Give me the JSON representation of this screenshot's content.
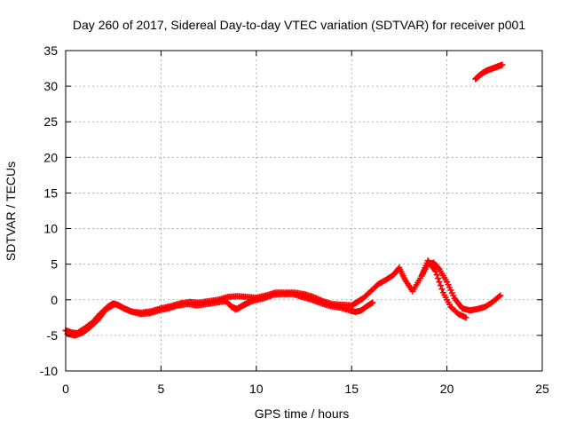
{
  "chart_data": {
    "type": "scatter",
    "title": "Day 260 of 2017, Sidereal Day-to-day VTEC variation (SDTVAR) for receiver p001",
    "xlabel": "GPS time / hours",
    "ylabel": "SDTVAR / TECUs",
    "xlim": [
      0,
      25
    ],
    "ylim": [
      -10,
      35
    ],
    "xticks": [
      0,
      5,
      10,
      15,
      20,
      25
    ],
    "yticks": [
      -10,
      -5,
      0,
      5,
      10,
      15,
      20,
      25,
      30,
      35
    ],
    "xtick_labels": [
      "0",
      "5",
      "10",
      "15",
      "20",
      "25"
    ],
    "ytick_labels": [
      "-10",
      "-5",
      "0",
      "5",
      "10",
      "15",
      "20",
      "25",
      "30",
      "35"
    ],
    "grid": true,
    "marker": "plus",
    "colors": {
      "series": "#ff0000",
      "grid": "#a0a0a0",
      "axes": "#000000"
    },
    "series": [
      {
        "name": "track-a",
        "x": [
          0.0,
          0.3,
          0.6,
          1.0,
          1.4,
          1.8,
          2.2,
          2.5,
          2.8,
          3.1,
          3.5,
          4.0,
          4.5,
          5.0,
          5.5,
          6.0,
          6.5,
          7.0,
          7.5,
          8.0,
          8.5,
          9.0,
          9.5,
          10.0,
          10.5,
          11.0,
          11.5,
          12.0,
          12.5,
          13.0,
          13.5,
          14.0,
          14.5,
          15.0,
          15.3,
          15.6,
          16.0,
          16.4,
          16.8,
          17.2,
          17.5,
          17.8,
          18.2,
          18.6,
          19.0,
          19.3,
          19.6,
          20.0,
          20.4,
          20.8,
          21.2,
          21.6,
          22.0,
          22.4,
          22.8
        ],
        "y": [
          -4.3,
          -4.6,
          -4.7,
          -4.0,
          -3.2,
          -2.0,
          -1.0,
          -0.5,
          -0.8,
          -1.3,
          -1.7,
          -1.8,
          -1.6,
          -1.2,
          -0.9,
          -0.5,
          -0.3,
          -0.4,
          -0.2,
          0.0,
          0.4,
          0.5,
          0.4,
          0.3,
          0.6,
          1.0,
          1.0,
          1.0,
          0.8,
          0.4,
          -0.2,
          -0.6,
          -0.7,
          -0.8,
          -0.3,
          0.2,
          1.2,
          2.2,
          2.8,
          3.5,
          4.5,
          2.8,
          1.2,
          3.0,
          5.0,
          5.2,
          4.3,
          2.5,
          0.2,
          -1.2,
          -1.5,
          -1.3,
          -1.0,
          -0.3,
          0.6
        ]
      },
      {
        "name": "track-b",
        "x": [
          0.1,
          0.5,
          0.9,
          1.3,
          1.7,
          2.1,
          2.6,
          3.0,
          3.4,
          3.9,
          4.4,
          4.9,
          5.4,
          5.9,
          6.4,
          6.9,
          7.4,
          7.9,
          8.4,
          8.9,
          9.4,
          9.9,
          10.4,
          10.9,
          11.4,
          11.9,
          12.4,
          12.9,
          13.4,
          13.9,
          14.4,
          14.9,
          15.2,
          15.5,
          15.8,
          16.1
        ],
        "y": [
          -4.8,
          -5.0,
          -4.6,
          -3.8,
          -2.8,
          -1.4,
          -0.6,
          -1.1,
          -1.6,
          -2.0,
          -1.9,
          -1.5,
          -1.2,
          -0.8,
          -0.6,
          -0.8,
          -0.6,
          -0.4,
          -0.2,
          -1.4,
          -0.6,
          -0.1,
          0.2,
          0.7,
          0.8,
          0.8,
          0.4,
          0.0,
          -0.5,
          -0.9,
          -1.1,
          -1.5,
          -1.7,
          -1.5,
          -0.9,
          -0.4
        ]
      },
      {
        "name": "track-c",
        "x": [
          8.7,
          9.0,
          9.3,
          9.6
        ],
        "y": [
          -1.0,
          -1.3,
          -0.8,
          -0.4
        ]
      },
      {
        "name": "track-d",
        "x": [
          18.7,
          19.0,
          19.4,
          19.8,
          20.2,
          20.6,
          21.0
        ],
        "y": [
          3.5,
          5.5,
          4.0,
          1.0,
          -1.0,
          -2.0,
          -2.5
        ]
      },
      {
        "name": "track-e",
        "x": [
          21.5,
          21.7,
          21.9,
          22.1,
          22.3,
          22.5,
          22.7,
          22.9
        ],
        "y": [
          31.0,
          31.5,
          31.9,
          32.2,
          32.4,
          32.6,
          32.8,
          33.0
        ]
      }
    ]
  }
}
